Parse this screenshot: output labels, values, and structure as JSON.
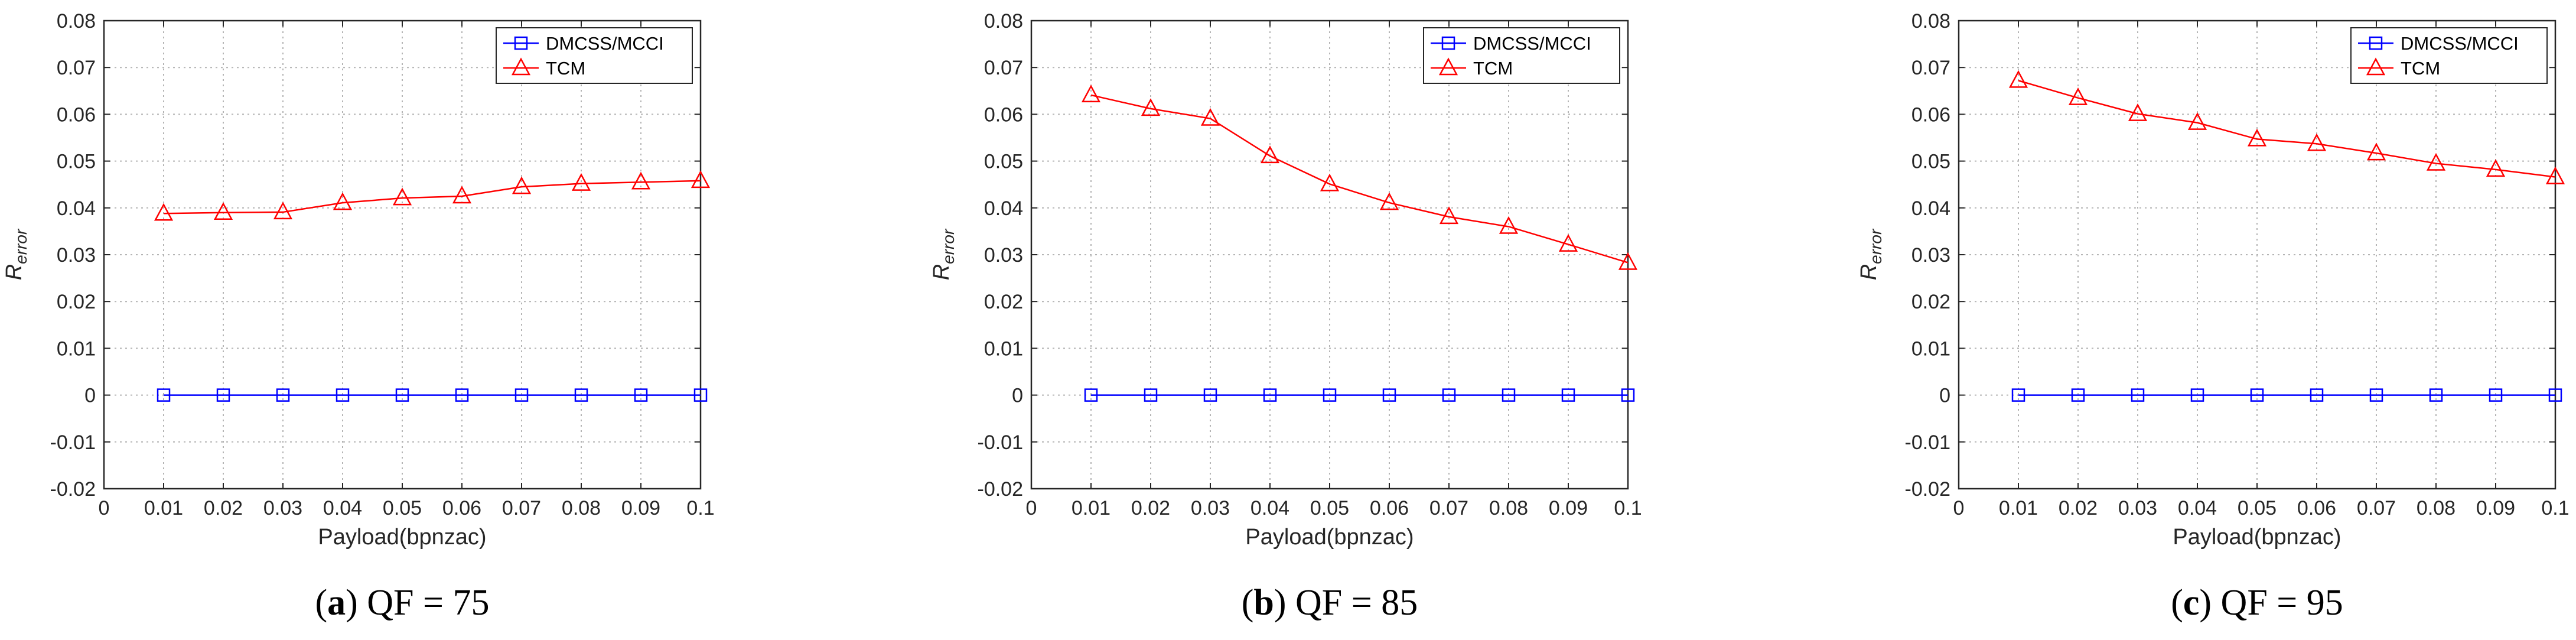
{
  "chart_data": [
    {
      "type": "line",
      "caption": {
        "letter": "a",
        "text": "QF = 75"
      },
      "xlabel": "Payload(bpnzac)",
      "ylabel": {
        "base": "R",
        "sub": "error"
      },
      "xlim": [
        0,
        0.1
      ],
      "ylim": [
        -0.02,
        0.08
      ],
      "xticks": [
        "0",
        "0.01",
        "0.02",
        "0.03",
        "0.04",
        "0.05",
        "0.06",
        "0.07",
        "0.08",
        "0.09",
        "0.1"
      ],
      "yticks": [
        "-0.02",
        "-0.01",
        "0",
        "0.01",
        "0.02",
        "0.03",
        "0.04",
        "0.05",
        "0.06",
        "0.07",
        "0.08"
      ],
      "grid": true,
      "legend_position": "top-right",
      "x": [
        0.01,
        0.02,
        0.03,
        0.04,
        0.05,
        0.06,
        0.07,
        0.08,
        0.09,
        0.1
      ],
      "series": [
        {
          "name": "DMCSS/MCCI",
          "color": "#0000ff",
          "marker": "square",
          "values": [
            0,
            0,
            0,
            0,
            0,
            0,
            0,
            0,
            0,
            0
          ]
        },
        {
          "name": "TCM",
          "color": "#ff0000",
          "marker": "triangle",
          "values": [
            0.0388,
            0.039,
            0.0391,
            0.0411,
            0.0421,
            0.0425,
            0.0445,
            0.0452,
            0.0455,
            0.0458
          ]
        }
      ]
    },
    {
      "type": "line",
      "caption": {
        "letter": "b",
        "text": "QF = 85"
      },
      "xlabel": "Payload(bpnzac)",
      "ylabel": {
        "base": "R",
        "sub": "error"
      },
      "xlim": [
        0,
        0.1
      ],
      "ylim": [
        -0.02,
        0.08
      ],
      "xticks": [
        "0",
        "0.01",
        "0.02",
        "0.03",
        "0.04",
        "0.05",
        "0.06",
        "0.07",
        "0.08",
        "0.09",
        "0.1"
      ],
      "yticks": [
        "-0.02",
        "-0.01",
        "0",
        "0.01",
        "0.02",
        "0.03",
        "0.04",
        "0.05",
        "0.06",
        "0.07",
        "0.08"
      ],
      "grid": true,
      "legend_position": "top-right",
      "x": [
        0.01,
        0.02,
        0.03,
        0.04,
        0.05,
        0.06,
        0.07,
        0.08,
        0.09,
        0.1
      ],
      "series": [
        {
          "name": "DMCSS/MCCI",
          "color": "#0000ff",
          "marker": "square",
          "values": [
            0,
            0,
            0,
            0,
            0,
            0,
            0,
            0,
            0,
            0
          ]
        },
        {
          "name": "TCM",
          "color": "#ff0000",
          "marker": "triangle",
          "values": [
            0.0641,
            0.0612,
            0.0591,
            0.0511,
            0.0451,
            0.0411,
            0.0381,
            0.036,
            0.0322,
            0.0283
          ]
        }
      ]
    },
    {
      "type": "line",
      "caption": {
        "letter": "c",
        "text": "QF = 95"
      },
      "xlabel": "Payload(bpnzac)",
      "ylabel": {
        "base": "R",
        "sub": "error"
      },
      "xlim": [
        0,
        0.1
      ],
      "ylim": [
        -0.02,
        0.08
      ],
      "xticks": [
        "0",
        "0.01",
        "0.02",
        "0.03",
        "0.04",
        "0.05",
        "0.06",
        "0.07",
        "0.08",
        "0.09",
        "0.1"
      ],
      "yticks": [
        "-0.02",
        "-0.01",
        "0",
        "0.01",
        "0.02",
        "0.03",
        "0.04",
        "0.05",
        "0.06",
        "0.07",
        "0.08"
      ],
      "grid": true,
      "legend_position": "top-right",
      "x": [
        0.01,
        0.02,
        0.03,
        0.04,
        0.05,
        0.06,
        0.07,
        0.08,
        0.09,
        0.1
      ],
      "series": [
        {
          "name": "DMCSS/MCCI",
          "color": "#0000ff",
          "marker": "square",
          "values": [
            0,
            0,
            0,
            0,
            0,
            0,
            0,
            0,
            0,
            0
          ]
        },
        {
          "name": "TCM",
          "color": "#ff0000",
          "marker": "triangle",
          "values": [
            0.0672,
            0.0635,
            0.0601,
            0.0582,
            0.0547,
            0.0537,
            0.0517,
            0.0495,
            0.0482,
            0.0466
          ]
        }
      ]
    }
  ]
}
